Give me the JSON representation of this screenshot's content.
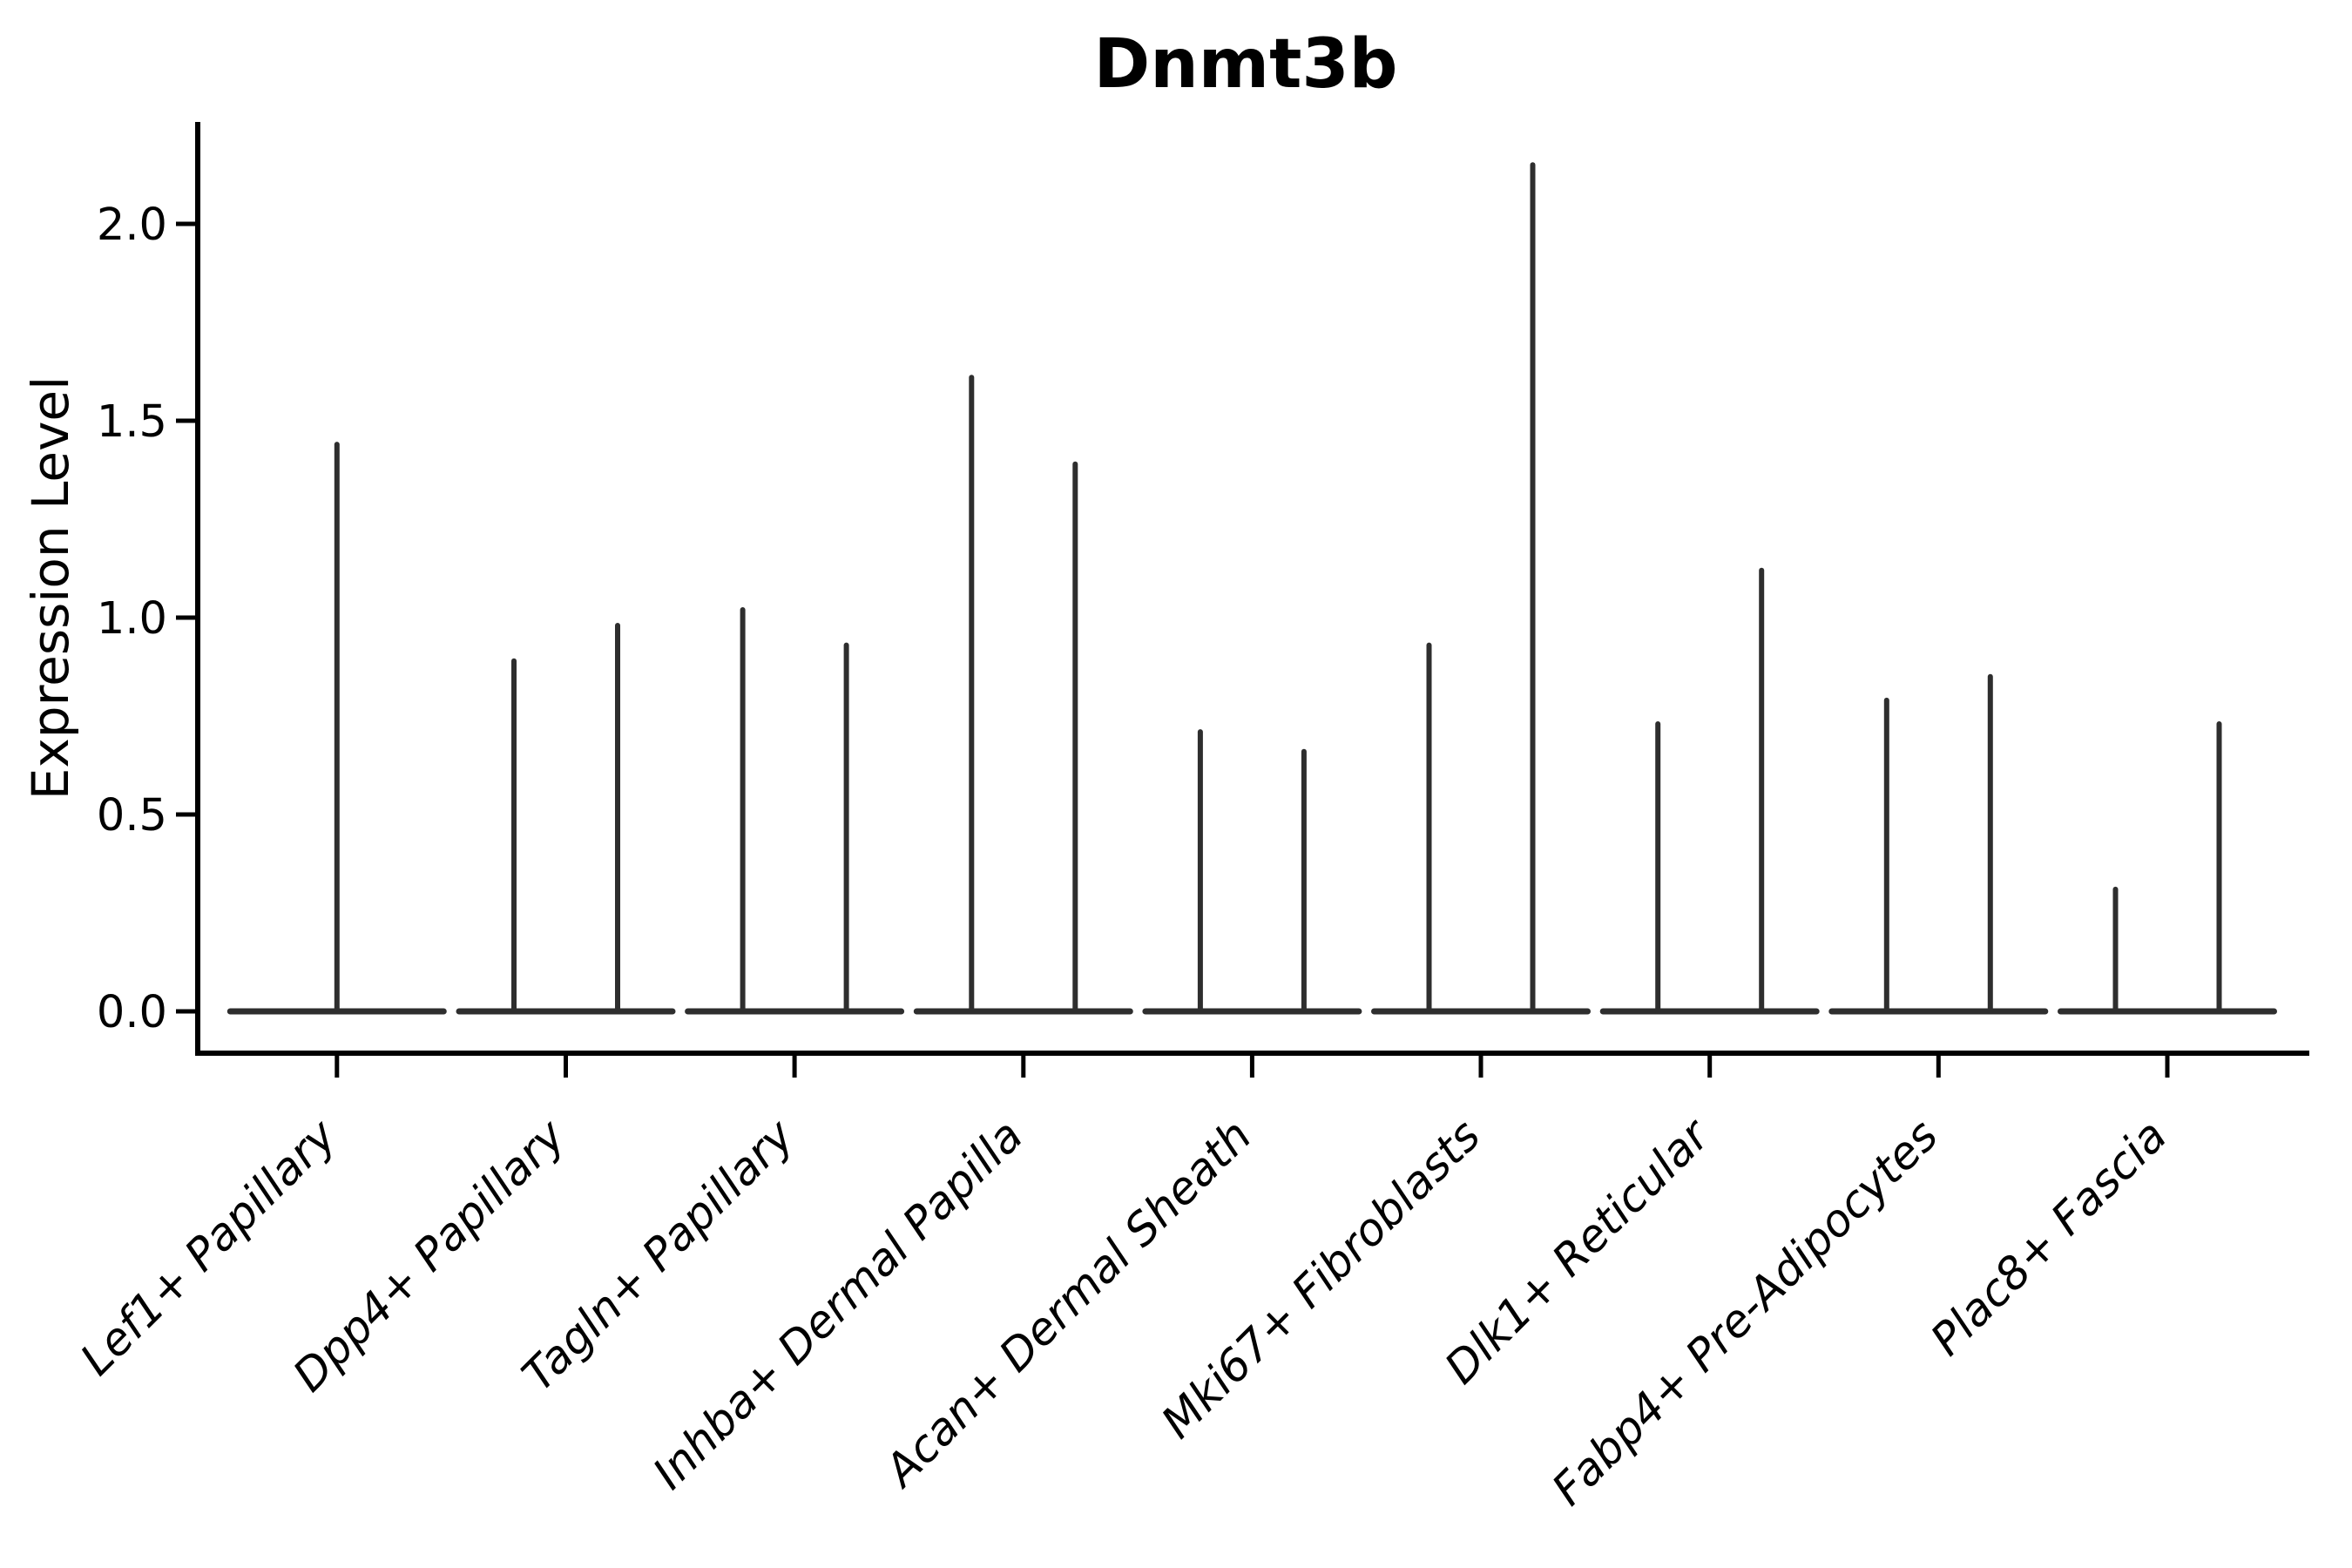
{
  "title": "Dnmt3b",
  "ylabel": "Expression Level",
  "chart_data": {
    "type": "violin",
    "title": "Dnmt3b",
    "xlabel": "",
    "ylabel": "Expression Level",
    "ylim": [
      -0.11,
      2.26
    ],
    "yticks": [
      0.0,
      0.5,
      1.0,
      1.5,
      2.0
    ],
    "ytick_labels": [
      "0.0",
      "0.5",
      "1.0",
      "1.5",
      "2.0"
    ],
    "grid": false,
    "legend": "none",
    "categories": [
      "Lef1+ Papillary",
      "Dpp4+ Papillary",
      "Tagln+ Papillary",
      "Inhba+ Dermal Papilla",
      "Acan+ Dermal Sheath",
      "Mki67+ Fibroblasts",
      "Dlk1+ Reticular",
      "Fabp4+ Pre-Adipocytes",
      "Plac8+ Fascia"
    ],
    "baseline_value": 0.0,
    "spike_values": [
      [
        1.44
      ],
      [
        0.89,
        0.98
      ],
      [
        1.02,
        0.93
      ],
      [
        1.61,
        1.39
      ],
      [
        0.71,
        0.66
      ],
      [
        0.93,
        2.15
      ],
      [
        0.73,
        1.12
      ],
      [
        0.79,
        0.85
      ],
      [
        0.31,
        0.73
      ]
    ],
    "violin_line_color": "#2e2e2e",
    "axis_color": "#000000",
    "background_color": "#ffffff"
  }
}
